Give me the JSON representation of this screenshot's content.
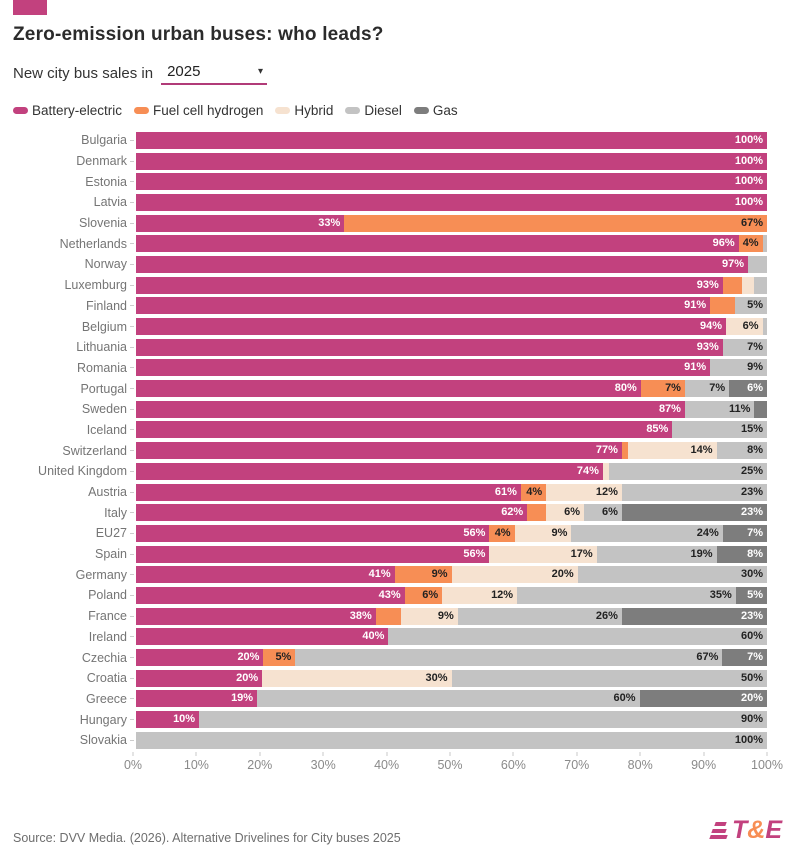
{
  "brand_color": "#c2417e",
  "header": {
    "title": "Zero-emission urban buses: who leads?",
    "subtitle_prefix": "New city bus sales in",
    "dropdown_value": "2025",
    "dropdown_caret": "▾"
  },
  "legend": [
    {
      "key": "battery-electric",
      "label": "Battery-electric",
      "color": "#c2417e",
      "text_color": "#ffffff"
    },
    {
      "key": "fuel-cell-hydrogen",
      "label": "Fuel cell hydrogen",
      "color": "#f78e55",
      "text_color": "#222222"
    },
    {
      "key": "hybrid",
      "label": "Hybrid",
      "color": "#f6e2d0",
      "text_color": "#222222"
    },
    {
      "key": "diesel",
      "label": "Diesel",
      "color": "#c3c3c3",
      "text_color": "#222222"
    },
    {
      "key": "gas",
      "label": "Gas",
      "color": "#7d7d7d",
      "text_color": "#ffffff"
    }
  ],
  "chart_data": {
    "type": "bar",
    "orientation": "horizontal",
    "stacked": true,
    "unit": "%",
    "xlim": [
      0,
      100
    ],
    "x_ticks": [
      "0%",
      "10%",
      "20%",
      "30%",
      "40%",
      "50%",
      "60%",
      "70%",
      "80%",
      "90%",
      "100%"
    ],
    "categories": [
      "Battery-electric",
      "Fuel cell hydrogen",
      "Hybrid",
      "Diesel",
      "Gas"
    ],
    "rows": [
      {
        "country": "Bulgaria",
        "segments": [
          {
            "category": "battery-electric",
            "value": 100,
            "label": "100%"
          }
        ]
      },
      {
        "country": "Denmark",
        "segments": [
          {
            "category": "battery-electric",
            "value": 100,
            "label": "100%"
          }
        ]
      },
      {
        "country": "Estonia",
        "segments": [
          {
            "category": "battery-electric",
            "value": 100,
            "label": "100%"
          }
        ]
      },
      {
        "country": "Latvia",
        "segments": [
          {
            "category": "battery-electric",
            "value": 100,
            "label": "100%"
          }
        ]
      },
      {
        "country": "Slovenia",
        "segments": [
          {
            "category": "battery-electric",
            "value": 33,
            "label": "33%"
          },
          {
            "category": "fuel-cell-hydrogen",
            "value": 67,
            "label": "67%"
          }
        ]
      },
      {
        "country": "Netherlands",
        "segments": [
          {
            "category": "battery-electric",
            "value": 95.5,
            "label": "96%"
          },
          {
            "category": "fuel-cell-hydrogen",
            "value": 3.8,
            "label": "4%"
          },
          {
            "category": "diesel",
            "value": 0.7,
            "label": ""
          }
        ]
      },
      {
        "country": "Norway",
        "segments": [
          {
            "category": "battery-electric",
            "value": 97,
            "label": "97%"
          },
          {
            "category": "diesel",
            "value": 3,
            "label": ""
          }
        ]
      },
      {
        "country": "Luxemburg",
        "segments": [
          {
            "category": "battery-electric",
            "value": 93,
            "label": "93%"
          },
          {
            "category": "fuel-cell-hydrogen",
            "value": 3,
            "label": ""
          },
          {
            "category": "hybrid",
            "value": 2,
            "label": ""
          },
          {
            "category": "diesel",
            "value": 2,
            "label": ""
          }
        ]
      },
      {
        "country": "Finland",
        "segments": [
          {
            "category": "battery-electric",
            "value": 91,
            "label": "91%"
          },
          {
            "category": "fuel-cell-hydrogen",
            "value": 4,
            "label": ""
          },
          {
            "category": "diesel",
            "value": 5,
            "label": "5%"
          }
        ]
      },
      {
        "country": "Belgium",
        "segments": [
          {
            "category": "battery-electric",
            "value": 93.5,
            "label": "94%"
          },
          {
            "category": "hybrid",
            "value": 5.8,
            "label": "6%"
          },
          {
            "category": "diesel",
            "value": 0.7,
            "label": ""
          }
        ]
      },
      {
        "country": "Lithuania",
        "segments": [
          {
            "category": "battery-electric",
            "value": 93,
            "label": "93%"
          },
          {
            "category": "diesel",
            "value": 7,
            "label": "7%"
          }
        ]
      },
      {
        "country": "Romania",
        "segments": [
          {
            "category": "battery-electric",
            "value": 91,
            "label": "91%"
          },
          {
            "category": "diesel",
            "value": 9,
            "label": "9%"
          }
        ]
      },
      {
        "country": "Portugal",
        "segments": [
          {
            "category": "battery-electric",
            "value": 80,
            "label": "80%"
          },
          {
            "category": "fuel-cell-hydrogen",
            "value": 7,
            "label": "7%"
          },
          {
            "category": "diesel",
            "value": 7,
            "label": "7%"
          },
          {
            "category": "gas",
            "value": 6,
            "label": "6%"
          }
        ]
      },
      {
        "country": "Sweden",
        "segments": [
          {
            "category": "battery-electric",
            "value": 87,
            "label": "87%"
          },
          {
            "category": "diesel",
            "value": 11,
            "label": "11%"
          },
          {
            "category": "gas",
            "value": 2,
            "label": ""
          }
        ]
      },
      {
        "country": "Iceland",
        "segments": [
          {
            "category": "battery-electric",
            "value": 85,
            "label": "85%"
          },
          {
            "category": "diesel",
            "value": 15,
            "label": "15%"
          }
        ]
      },
      {
        "country": "Switzerland",
        "segments": [
          {
            "category": "battery-electric",
            "value": 77,
            "label": "77%"
          },
          {
            "category": "fuel-cell-hydrogen",
            "value": 1,
            "label": ""
          },
          {
            "category": "hybrid",
            "value": 14,
            "label": "14%"
          },
          {
            "category": "diesel",
            "value": 8,
            "label": "8%"
          }
        ]
      },
      {
        "country": "United Kingdom",
        "segments": [
          {
            "category": "battery-electric",
            "value": 74,
            "label": "74%"
          },
          {
            "category": "hybrid",
            "value": 1,
            "label": ""
          },
          {
            "category": "diesel",
            "value": 25,
            "label": "25%"
          }
        ]
      },
      {
        "country": "Austria",
        "segments": [
          {
            "category": "battery-electric",
            "value": 61,
            "label": "61%"
          },
          {
            "category": "fuel-cell-hydrogen",
            "value": 4,
            "label": "4%"
          },
          {
            "category": "hybrid",
            "value": 12,
            "label": "12%"
          },
          {
            "category": "diesel",
            "value": 23,
            "label": "23%"
          }
        ]
      },
      {
        "country": "Italy",
        "segments": [
          {
            "category": "battery-electric",
            "value": 62,
            "label": "62%"
          },
          {
            "category": "fuel-cell-hydrogen",
            "value": 3,
            "label": ""
          },
          {
            "category": "hybrid",
            "value": 6,
            "label": "6%"
          },
          {
            "category": "diesel",
            "value": 6,
            "label": "6%"
          },
          {
            "category": "gas",
            "value": 23,
            "label": "23%"
          }
        ]
      },
      {
        "country": "EU27",
        "segments": [
          {
            "category": "battery-electric",
            "value": 56,
            "label": "56%"
          },
          {
            "category": "fuel-cell-hydrogen",
            "value": 4,
            "label": "4%"
          },
          {
            "category": "hybrid",
            "value": 9,
            "label": "9%"
          },
          {
            "category": "diesel",
            "value": 24,
            "label": "24%"
          },
          {
            "category": "gas",
            "value": 7,
            "label": "7%"
          }
        ]
      },
      {
        "country": "Spain",
        "segments": [
          {
            "category": "battery-electric",
            "value": 56,
            "label": "56%"
          },
          {
            "category": "hybrid",
            "value": 17,
            "label": "17%"
          },
          {
            "category": "diesel",
            "value": 19,
            "label": "19%"
          },
          {
            "category": "gas",
            "value": 8,
            "label": "8%"
          }
        ]
      },
      {
        "country": "Germany",
        "segments": [
          {
            "category": "battery-electric",
            "value": 41,
            "label": "41%"
          },
          {
            "category": "fuel-cell-hydrogen",
            "value": 9,
            "label": "9%"
          },
          {
            "category": "hybrid",
            "value": 20,
            "label": "20%"
          },
          {
            "category": "diesel",
            "value": 30,
            "label": "30%"
          }
        ]
      },
      {
        "country": "Poland",
        "segments": [
          {
            "category": "battery-electric",
            "value": 43,
            "label": "43%"
          },
          {
            "category": "fuel-cell-hydrogen",
            "value": 6,
            "label": "6%"
          },
          {
            "category": "hybrid",
            "value": 12,
            "label": "12%"
          },
          {
            "category": "diesel",
            "value": 35,
            "label": "35%"
          },
          {
            "category": "gas",
            "value": 5,
            "label": "5%"
          }
        ]
      },
      {
        "country": "France",
        "segments": [
          {
            "category": "battery-electric",
            "value": 38,
            "label": "38%"
          },
          {
            "category": "fuel-cell-hydrogen",
            "value": 4,
            "label": ""
          },
          {
            "category": "hybrid",
            "value": 9,
            "label": "9%"
          },
          {
            "category": "diesel",
            "value": 26,
            "label": "26%"
          },
          {
            "category": "gas",
            "value": 23,
            "label": "23%"
          }
        ]
      },
      {
        "country": "Ireland",
        "segments": [
          {
            "category": "battery-electric",
            "value": 40,
            "label": "40%"
          },
          {
            "category": "diesel",
            "value": 60,
            "label": "60%"
          }
        ]
      },
      {
        "country": "Czechia",
        "segments": [
          {
            "category": "battery-electric",
            "value": 20,
            "label": "20%"
          },
          {
            "category": "fuel-cell-hydrogen",
            "value": 5,
            "label": "5%"
          },
          {
            "category": "diesel",
            "value": 67,
            "label": "67%"
          },
          {
            "category": "gas",
            "value": 7,
            "label": "7%"
          }
        ]
      },
      {
        "country": "Croatia",
        "segments": [
          {
            "category": "battery-electric",
            "value": 20,
            "label": "20%"
          },
          {
            "category": "hybrid",
            "value": 30,
            "label": "30%"
          },
          {
            "category": "diesel",
            "value": 50,
            "label": "50%"
          }
        ]
      },
      {
        "country": "Greece",
        "segments": [
          {
            "category": "battery-electric",
            "value": 19,
            "label": "19%"
          },
          {
            "category": "diesel",
            "value": 60,
            "label": "60%"
          },
          {
            "category": "gas",
            "value": 20,
            "label": "20%"
          }
        ]
      },
      {
        "country": "Hungary",
        "segments": [
          {
            "category": "battery-electric",
            "value": 10,
            "label": "10%"
          },
          {
            "category": "diesel",
            "value": 90,
            "label": "90%"
          }
        ]
      },
      {
        "country": "Slovakia",
        "segments": [
          {
            "category": "diesel",
            "value": 100,
            "label": "100%"
          }
        ]
      }
    ]
  },
  "footer": {
    "source": "Source: DVV Media. (2026). Alternative Drivelines for City buses 2025",
    "logo_t": "T",
    "logo_amp": "&",
    "logo_e": "E"
  }
}
